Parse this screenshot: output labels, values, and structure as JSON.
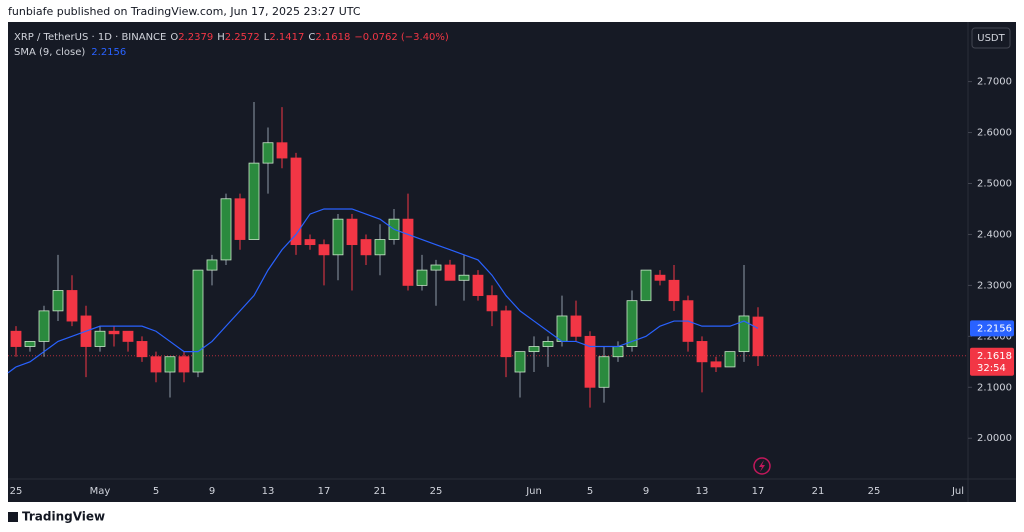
{
  "chart_data": {
    "type": "candlestick",
    "published": "funbiafe published on TradingView.com, Jun 17, 2025 23:27 UTC",
    "symbol": "XRP / TetherUS · 1D · BINANCE",
    "ohlc_letters": [
      "O",
      "H",
      "L",
      "C"
    ],
    "change": "−0.0762 (−3.40%)",
    "sma_label": "SMA (9, close)",
    "currency": "USDT",
    "countdown": "32:54",
    "brand": "TradingView",
    "up_color": "#2b8a3e",
    "down_color": "#f23645",
    "sma_color": "#2962ff",
    "categories": [
      "25",
      null,
      null,
      null,
      null,
      null,
      "May",
      null,
      null,
      null,
      "5",
      null,
      null,
      null,
      "9",
      null,
      null,
      null,
      "13",
      null,
      null,
      null,
      "17",
      null,
      null,
      null,
      "21",
      null,
      null,
      null,
      "25",
      null,
      null,
      null,
      null,
      null,
      null,
      "Jun",
      null,
      null,
      null,
      "5",
      null,
      null,
      null,
      "9",
      null,
      null,
      null,
      "13",
      null,
      null,
      null,
      "17"
    ],
    "future_ticks": [
      "21",
      "25",
      "Jul"
    ],
    "open": [
      2.21,
      2.18,
      2.19,
      2.25,
      2.29,
      2.24,
      2.18,
      2.21,
      2.21,
      2.19,
      2.16,
      2.13,
      2.16,
      2.13,
      2.33,
      2.35,
      2.47,
      2.39,
      2.54,
      2.58,
      2.55,
      2.39,
      2.38,
      2.36,
      2.43,
      2.39,
      2.36,
      2.39,
      2.43,
      2.3,
      2.33,
      2.34,
      2.31,
      2.32,
      2.28,
      2.25,
      2.13,
      2.17,
      2.18,
      2.19,
      2.24,
      2.2,
      2.1,
      2.16,
      2.18,
      2.27,
      2.32,
      2.31,
      2.27,
      2.19,
      2.15,
      2.14,
      2.17,
      2.2379
    ],
    "high": [
      2.22,
      2.19,
      2.26,
      2.36,
      2.32,
      2.26,
      2.22,
      2.22,
      2.21,
      2.2,
      2.17,
      2.16,
      2.17,
      2.33,
      2.36,
      2.48,
      2.48,
      2.66,
      2.61,
      2.65,
      2.56,
      2.4,
      2.39,
      2.44,
      2.44,
      2.4,
      2.42,
      2.45,
      2.48,
      2.36,
      2.35,
      2.35,
      2.36,
      2.33,
      2.3,
      2.26,
      2.17,
      2.2,
      2.2,
      2.28,
      2.27,
      2.21,
      2.18,
      2.19,
      2.29,
      2.33,
      2.33,
      2.34,
      2.28,
      2.2,
      2.16,
      2.17,
      2.34,
      2.2572
    ],
    "low": [
      2.16,
      2.17,
      2.16,
      2.23,
      2.22,
      2.12,
      2.17,
      2.18,
      2.17,
      2.15,
      2.11,
      2.08,
      2.11,
      2.12,
      2.3,
      2.34,
      2.37,
      2.39,
      2.48,
      2.53,
      2.36,
      2.37,
      2.3,
      2.31,
      2.29,
      2.34,
      2.32,
      2.38,
      2.29,
      2.29,
      2.26,
      2.31,
      2.27,
      2.27,
      2.22,
      2.12,
      2.08,
      2.13,
      2.14,
      2.18,
      2.19,
      2.06,
      2.07,
      2.15,
      2.17,
      2.27,
      2.3,
      2.25,
      2.17,
      2.09,
      2.13,
      2.14,
      2.15,
      2.1417
    ],
    "close": [
      2.18,
      2.19,
      2.25,
      2.29,
      2.23,
      2.18,
      2.21,
      2.205,
      2.19,
      2.16,
      2.13,
      2.16,
      2.13,
      2.33,
      2.35,
      2.47,
      2.39,
      2.54,
      2.58,
      2.55,
      2.38,
      2.38,
      2.36,
      2.43,
      2.38,
      2.36,
      2.39,
      2.43,
      2.3,
      2.33,
      2.34,
      2.31,
      2.32,
      2.28,
      2.25,
      2.16,
      2.17,
      2.18,
      2.19,
      2.24,
      2.2,
      2.1,
      2.16,
      2.18,
      2.27,
      2.33,
      2.31,
      2.27,
      2.19,
      2.15,
      2.14,
      2.17,
      2.24,
      2.1618
    ],
    "sma": [
      2.14,
      2.15,
      2.17,
      2.19,
      2.2,
      2.21,
      2.22,
      2.22,
      2.22,
      2.22,
      2.21,
      2.19,
      2.17,
      2.17,
      2.19,
      2.22,
      2.25,
      2.28,
      2.33,
      2.37,
      2.4,
      2.44,
      2.45,
      2.45,
      2.45,
      2.44,
      2.43,
      2.41,
      2.4,
      2.39,
      2.38,
      2.37,
      2.36,
      2.35,
      2.32,
      2.28,
      2.25,
      2.23,
      2.21,
      2.19,
      2.19,
      2.18,
      2.18,
      2.18,
      2.19,
      2.2,
      2.22,
      2.23,
      2.23,
      2.22,
      2.22,
      2.22,
      2.23,
      2.2156
    ],
    "ylim": [
      1.92,
      2.815
    ],
    "yticks": [
      {
        "value": 2.0,
        "label": "2.0000"
      },
      {
        "value": 2.1,
        "label": "2.1000"
      },
      {
        "value": 2.2,
        "label": "2.2000"
      },
      {
        "value": 2.3,
        "label": "2.3000"
      },
      {
        "value": 2.4,
        "label": "2.4000"
      },
      {
        "value": 2.5,
        "label": "2.5000"
      },
      {
        "value": 2.6,
        "label": "2.6000"
      },
      {
        "value": 2.7,
        "label": "2.7000"
      }
    ]
  }
}
